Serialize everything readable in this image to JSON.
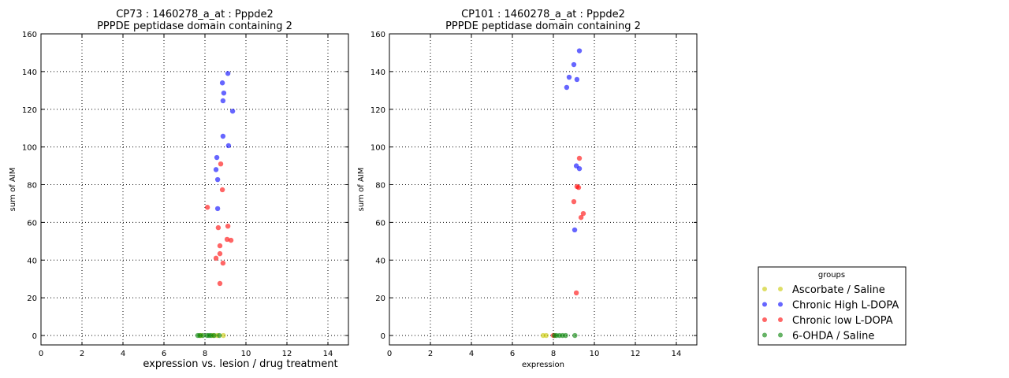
{
  "chart_data": [
    {
      "type": "scatter",
      "title": "CP73 : 1460278_a_at : Pppde2",
      "subtitle": "PPPDE peptidase domain containing 2",
      "xlabel": "expression vs. lesion / drug treatment",
      "ylabel": "sum of AIM",
      "xlim": [
        0,
        15
      ],
      "ylim": [
        -5,
        160
      ],
      "xticks": [
        "0",
        "2",
        "4",
        "6",
        "8",
        "10",
        "12",
        "14"
      ],
      "yticks": [
        "0",
        "20",
        "40",
        "60",
        "80",
        "100",
        "120",
        "140",
        "160"
      ],
      "grid": true,
      "series": [
        {
          "name": "Ascorbate / Saline",
          "points": [
            [
              7.8,
              0
            ],
            [
              8.4,
              0
            ],
            [
              8.9,
              0
            ],
            [
              8.6,
              0
            ]
          ]
        },
        {
          "name": "Chronic High L-DOPA",
          "points": [
            [
              9.12,
              139
            ],
            [
              8.85,
              134
            ],
            [
              8.92,
              128.6
            ],
            [
              8.88,
              124.5
            ],
            [
              9.35,
              119
            ],
            [
              8.88,
              105.7
            ],
            [
              9.15,
              100.7
            ],
            [
              8.58,
              94.4
            ],
            [
              8.54,
              88
            ],
            [
              8.62,
              82.7
            ],
            [
              8.62,
              67.3
            ]
          ]
        },
        {
          "name": "Chronic low L-DOPA",
          "points": [
            [
              8.77,
              91
            ],
            [
              8.85,
              77.3
            ],
            [
              8.12,
              68
            ],
            [
              9.12,
              58
            ],
            [
              8.65,
              57.2
            ],
            [
              9.08,
              51
            ],
            [
              9.27,
              50.5
            ],
            [
              8.73,
              47.6
            ],
            [
              8.73,
              43.4
            ],
            [
              8.54,
              41
            ],
            [
              8.88,
              38.4
            ],
            [
              8.73,
              27.6
            ]
          ]
        },
        {
          "name": "6-OHDA / Saline",
          "points": [
            [
              7.65,
              0
            ],
            [
              7.75,
              0
            ],
            [
              7.9,
              0
            ],
            [
              8.1,
              0
            ],
            [
              8.2,
              0
            ],
            [
              8.3,
              0
            ],
            [
              8.45,
              0
            ],
            [
              8.7,
              0
            ]
          ]
        }
      ]
    },
    {
      "type": "scatter",
      "title": "CP101 : 1460278_a_at : Pppde2",
      "subtitle": "PPPDE peptidase domain containing 2",
      "xlabel": "expression",
      "ylabel": "sum of AIM",
      "xlim": [
        0,
        15
      ],
      "ylim": [
        -5,
        160
      ],
      "xticks": [
        "0",
        "2",
        "4",
        "6",
        "8",
        "10",
        "12",
        "14"
      ],
      "yticks": [
        "0",
        "20",
        "40",
        "60",
        "80",
        "100",
        "120",
        "140",
        "160"
      ],
      "grid": true,
      "series": [
        {
          "name": "Ascorbate / Saline",
          "points": [
            [
              7.5,
              0
            ],
            [
              7.65,
              0
            ]
          ]
        },
        {
          "name": "Chronic High L-DOPA",
          "points": [
            [
              9.27,
              151
            ],
            [
              9.0,
              143.7
            ],
            [
              8.77,
              137
            ],
            [
              9.15,
              135.8
            ],
            [
              8.65,
              131.6
            ],
            [
              9.12,
              90
            ],
            [
              9.27,
              88.5
            ],
            [
              9.04,
              56
            ]
          ]
        },
        {
          "name": "Chronic low L-DOPA",
          "points": [
            [
              9.27,
              94
            ],
            [
              9.15,
              79
            ],
            [
              9.23,
              78.5
            ],
            [
              9.0,
              71
            ],
            [
              9.46,
              64.7
            ],
            [
              9.35,
              62.6
            ],
            [
              9.12,
              22.6
            ],
            [
              8.0,
              0
            ]
          ]
        },
        {
          "name": "6-OHDA / Saline",
          "points": [
            [
              8.05,
              0
            ],
            [
              8.15,
              0
            ],
            [
              8.3,
              0
            ],
            [
              8.45,
              0
            ],
            [
              8.6,
              0
            ],
            [
              9.05,
              0
            ]
          ]
        }
      ]
    }
  ],
  "legend": {
    "title": "groups",
    "placement": "bottom-right",
    "entries": [
      {
        "label": "Ascorbate / Saline",
        "color": "#c8c800"
      },
      {
        "label": "Chronic High L-DOPA",
        "color": "#0000ff"
      },
      {
        "label": "Chronic low L-DOPA",
        "color": "#ff0000"
      },
      {
        "label": "6-OHDA / Saline",
        "color": "#008000"
      }
    ]
  }
}
